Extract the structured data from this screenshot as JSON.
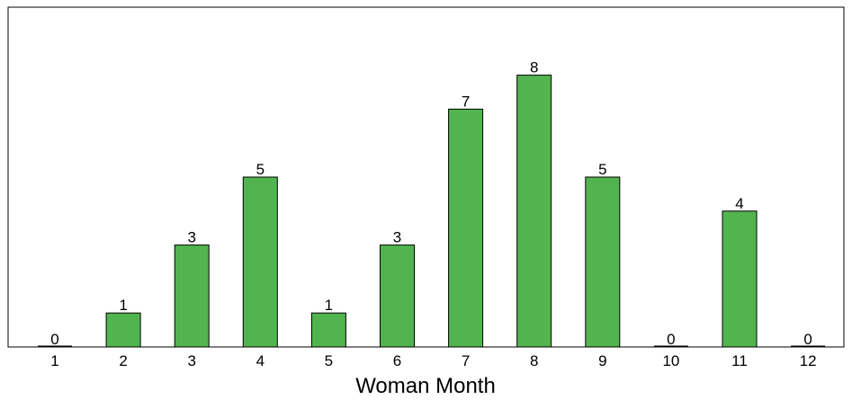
{
  "chart_data": {
    "type": "bar",
    "categories": [
      "1",
      "2",
      "3",
      "4",
      "5",
      "6",
      "7",
      "8",
      "9",
      "10",
      "11",
      "12"
    ],
    "values": [
      0,
      1,
      3,
      5,
      1,
      3,
      7,
      8,
      5,
      0,
      4,
      0
    ],
    "data_labels": [
      "0",
      "1",
      "3",
      "5",
      "1",
      "3",
      "7",
      "8",
      "5",
      "0",
      "4",
      "0"
    ],
    "title": "",
    "xlabel": "Woman Month",
    "ylabel": "",
    "ylim": [
      0,
      10
    ],
    "grid": false,
    "legend": "none",
    "colors": {
      "bar_fill": "#52b44f",
      "bar_stroke": "#000000",
      "frame": "#000000",
      "text": "#000000"
    }
  }
}
